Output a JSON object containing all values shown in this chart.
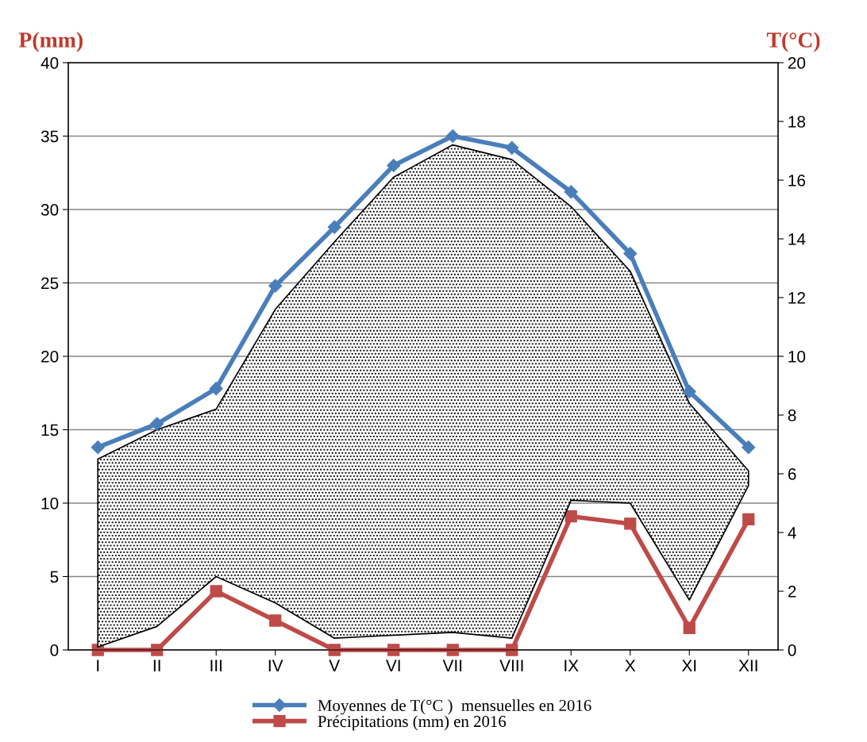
{
  "chart_data": {
    "type": "line",
    "ylabel": "P(mm)",
    "y2label": "T(°C)",
    "categories": [
      "I",
      "II",
      "III",
      "IV",
      "V",
      "VI",
      "VII",
      "VIII",
      "IX",
      "X",
      "XI",
      "XII"
    ],
    "series": [
      {
        "name": "Moyennes de T(°C )  mensuelles en 2016",
        "color": "#4a7ebb",
        "axis": "y2",
        "marker": "diamond",
        "values": [
          6.9,
          7.7,
          8.9,
          12.4,
          14.4,
          16.5,
          17.5,
          17.1,
          15.6,
          13.5,
          8.8,
          6.9
        ],
        "lower": [
          0.1,
          0.8,
          2.5,
          1.6,
          0.4,
          0.5,
          0.6,
          0.4,
          5.1,
          5.0,
          1.7,
          5.6
        ],
        "upper": [
          6.5,
          7.5,
          8.2,
          11.6,
          13.9,
          16.1,
          17.2,
          16.7,
          15.1,
          12.9,
          8.4,
          6.1
        ]
      },
      {
        "name": "Précipitations (mm) en 2016",
        "color": "#be4b48",
        "axis": "y",
        "marker": "square",
        "values": [
          0,
          0,
          4,
          2,
          0,
          0,
          0,
          0,
          9.1,
          8.6,
          1.5,
          8.9
        ]
      }
    ],
    "ylim": [
      0,
      40
    ],
    "yticks": [
      0,
      5,
      10,
      15,
      20,
      25,
      30,
      35,
      40
    ],
    "y2lim": [
      0,
      20
    ],
    "y2ticks": [
      0,
      2,
      4,
      6,
      8,
      10,
      12,
      14,
      16,
      18,
      20
    ],
    "grid": "y",
    "legend": "bottom",
    "line_style": "solid"
  }
}
